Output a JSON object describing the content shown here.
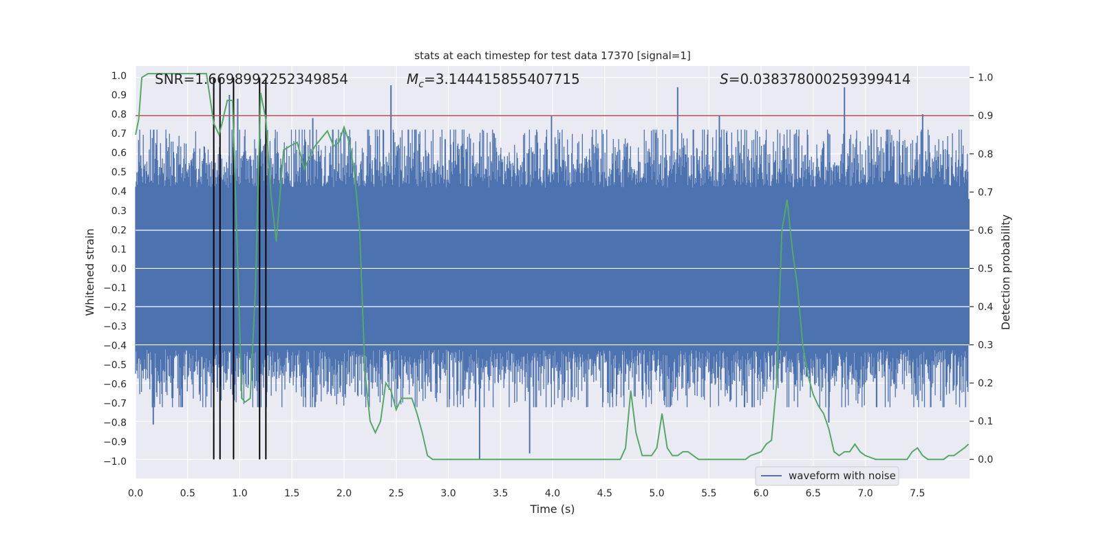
{
  "chart_data": {
    "type": "line",
    "title": "stats at each timestep for test data 17370 [signal=1]",
    "xlabel": "Time (s)",
    "ylabel_left": "Whitened strain",
    "ylabel_right": "Detection probability",
    "xlim": [
      0.0,
      8.0
    ],
    "ylim_left": [
      -1.09,
      1.05
    ],
    "ylim_right": [
      -0.05,
      1.03
    ],
    "xticks": [
      "0.0",
      "0.5",
      "1.0",
      "1.5",
      "2.0",
      "2.5",
      "3.0",
      "3.5",
      "4.0",
      "4.5",
      "5.0",
      "5.5",
      "6.0",
      "6.5",
      "7.0",
      "7.5"
    ],
    "yticks_left": [
      "1.0",
      "0.9",
      "0.8",
      "0.7",
      "0.6",
      "0.5",
      "0.4",
      "0.3",
      "0.2",
      "0.1",
      "0.0",
      "-0.1",
      "-0.2",
      "-0.3",
      "-0.4",
      "-0.5",
      "-0.6",
      "-0.7",
      "-0.8",
      "-0.9",
      "-1.0"
    ],
    "yticks_right": [
      "1.0",
      "0.9",
      "0.8",
      "0.7",
      "0.6",
      "0.5",
      "0.4",
      "0.3",
      "0.2",
      "0.1",
      "0.0"
    ],
    "annotations": {
      "snr": "SNR=1.6698992252349854",
      "mc_symbol": "M",
      "mc_sub": "c",
      "mc_value": "=3.144415855407715",
      "s_symbol": "S",
      "s_value": "=0.038378000259399414"
    },
    "legend": {
      "label": "waveform with noise",
      "loc": "lower-right"
    },
    "threshold_line": {
      "prob": 0.9,
      "color": "#c44e52"
    },
    "event_markers_s": [
      0.75,
      0.81,
      0.94,
      1.19,
      1.25
    ],
    "waveform": {
      "name": "waveform with noise",
      "color": "#4c72b0",
      "samples": 1400,
      "noise_std": 0.16,
      "envelope_pos": 0.42,
      "envelope_neg": -0.42,
      "spikes": [
        {
          "t": 0.9,
          "v": 0.9
        },
        {
          "t": 0.98,
          "v": 0.88
        },
        {
          "t": 1.19,
          "v": 0.78
        },
        {
          "t": 1.7,
          "v": 0.78
        },
        {
          "t": 2.45,
          "v": 0.95
        },
        {
          "t": 2.97,
          "v": 0.67
        },
        {
          "t": 3.99,
          "v": 0.79
        },
        {
          "t": 5.2,
          "v": 0.94
        },
        {
          "t": 5.6,
          "v": 0.79
        },
        {
          "t": 6.8,
          "v": 0.94
        },
        {
          "t": 7.55,
          "v": 0.8
        },
        {
          "t": 3.3,
          "v": -0.99
        },
        {
          "t": 3.78,
          "v": -0.96
        },
        {
          "t": 0.17,
          "v": -0.81
        },
        {
          "t": 6.65,
          "v": -0.8
        }
      ]
    },
    "probability": {
      "name": "detection probability",
      "color": "#55a868",
      "x": [
        0.0,
        0.03,
        0.06,
        0.12,
        0.3,
        0.55,
        0.68,
        0.75,
        0.8,
        0.83,
        0.88,
        0.93,
        0.97,
        1.02,
        1.05,
        1.1,
        1.15,
        1.2,
        1.25,
        1.3,
        1.35,
        1.42,
        1.48,
        1.55,
        1.62,
        1.68,
        1.72,
        1.78,
        1.84,
        1.9,
        1.95,
        2.0,
        2.05,
        2.1,
        2.15,
        2.2,
        2.25,
        2.3,
        2.35,
        2.4,
        2.45,
        2.5,
        2.55,
        2.6,
        2.65,
        2.7,
        2.75,
        2.8,
        2.85,
        2.9,
        3.0,
        3.1,
        3.2,
        3.3,
        3.4,
        3.5,
        3.6,
        3.7,
        3.8,
        3.9,
        4.0,
        4.1,
        4.2,
        4.3,
        4.4,
        4.5,
        4.6,
        4.65,
        4.7,
        4.75,
        4.8,
        4.86,
        4.9,
        4.95,
        5.0,
        5.05,
        5.1,
        5.15,
        5.2,
        5.25,
        5.3,
        5.35,
        5.4,
        5.5,
        5.6,
        5.7,
        5.8,
        5.85,
        5.9,
        6.0,
        6.05,
        6.1,
        6.15,
        6.2,
        6.25,
        6.3,
        6.35,
        6.4,
        6.45,
        6.5,
        6.55,
        6.6,
        6.65,
        6.7,
        6.75,
        6.8,
        6.85,
        6.9,
        6.95,
        7.0,
        7.1,
        7.2,
        7.3,
        7.35,
        7.4,
        7.45,
        7.5,
        7.55,
        7.6,
        7.7,
        7.75,
        7.8,
        7.85,
        7.9,
        7.95,
        7.99
      ],
      "y": [
        0.85,
        0.89,
        1.0,
        1.01,
        1.01,
        1.01,
        1.01,
        0.88,
        0.85,
        0.88,
        0.94,
        0.94,
        0.6,
        0.16,
        0.15,
        0.16,
        0.45,
        0.96,
        0.89,
        0.69,
        0.57,
        0.81,
        0.82,
        0.83,
        0.76,
        0.8,
        0.82,
        0.84,
        0.86,
        0.82,
        0.83,
        0.87,
        0.83,
        0.75,
        0.6,
        0.23,
        0.1,
        0.07,
        0.1,
        0.2,
        0.18,
        0.13,
        0.16,
        0.16,
        0.16,
        0.12,
        0.07,
        0.01,
        0.0,
        0.0,
        0.0,
        0.0,
        0.0,
        0.0,
        0.0,
        0.0,
        0.0,
        0.0,
        0.0,
        0.0,
        0.0,
        0.0,
        0.0,
        0.0,
        0.0,
        0.0,
        0.0,
        0.0,
        0.03,
        0.18,
        0.07,
        0.01,
        0.01,
        0.01,
        0.03,
        0.12,
        0.03,
        0.01,
        0.01,
        0.02,
        0.02,
        0.01,
        0.0,
        0.0,
        0.0,
        0.0,
        0.0,
        0.0,
        0.01,
        0.02,
        0.04,
        0.05,
        0.2,
        0.6,
        0.68,
        0.55,
        0.45,
        0.3,
        0.22,
        0.17,
        0.14,
        0.12,
        0.08,
        0.02,
        0.01,
        0.02,
        0.02,
        0.04,
        0.02,
        0.01,
        0.0,
        0.0,
        0.0,
        0.0,
        0.0,
        0.02,
        0.03,
        0.01,
        0.0,
        0.0,
        0.0,
        0.01,
        0.01,
        0.02,
        0.03,
        0.04
      ]
    }
  }
}
